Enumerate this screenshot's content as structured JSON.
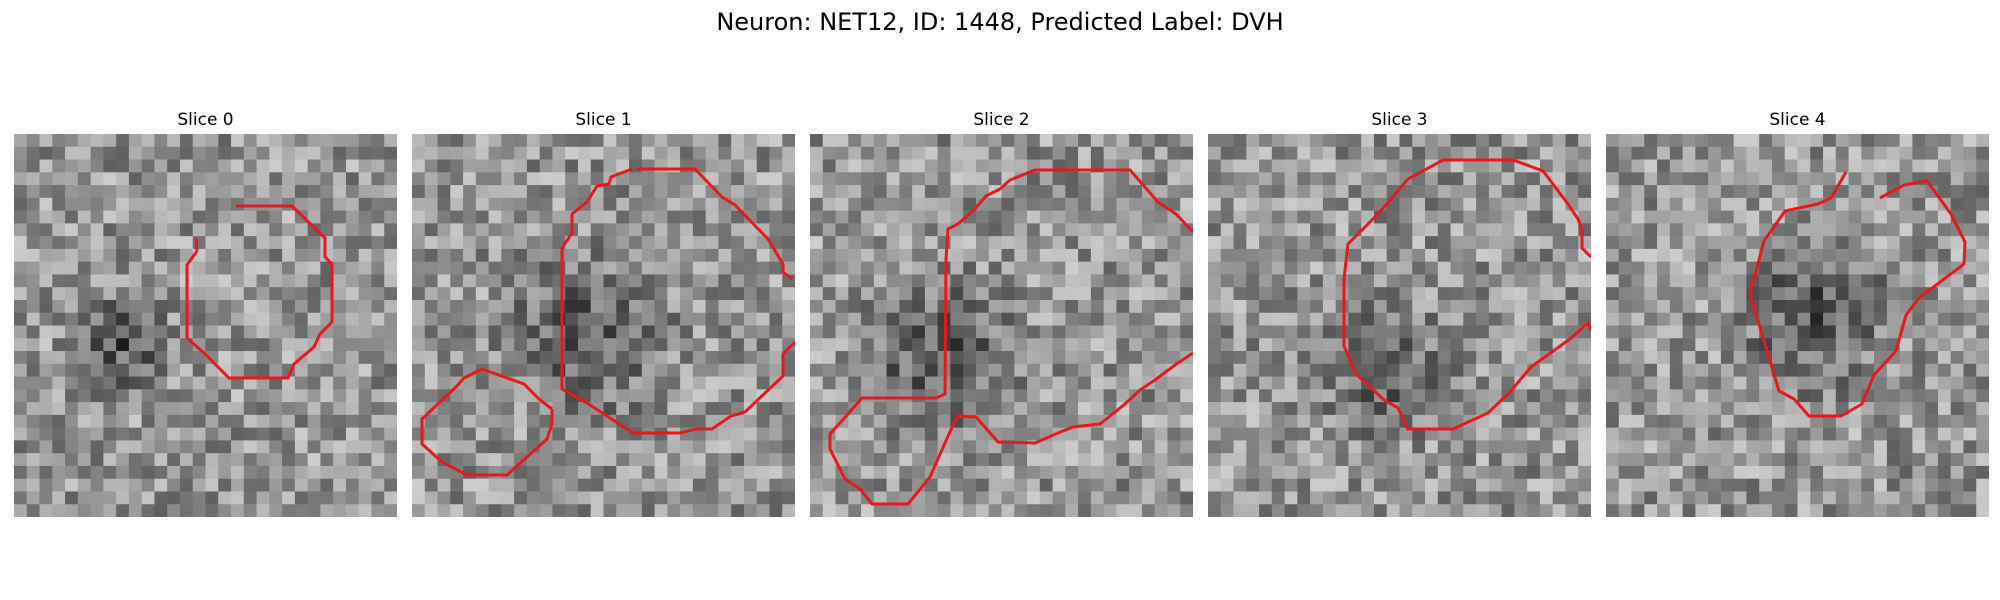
{
  "figure": {
    "title": "Neuron: NET12, ID: 1448, Predicted Label: DVH",
    "contour_color": "#e41a1c"
  },
  "panels": [
    {
      "label": "Slice 0"
    },
    {
      "label": "Slice 1"
    },
    {
      "label": "Slice 2"
    },
    {
      "label": "Slice 3"
    },
    {
      "label": "Slice 4"
    }
  ]
}
